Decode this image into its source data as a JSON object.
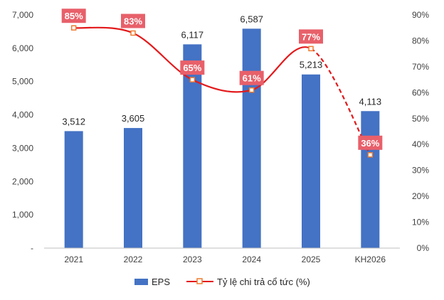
{
  "chart_data": {
    "type": "bar",
    "categories": [
      "2021",
      "2022",
      "2023",
      "2024",
      "2025",
      "KH2026"
    ],
    "series": [
      {
        "name": "EPS",
        "type": "bar",
        "axis": "left",
        "values": [
          3512,
          3605,
          6117,
          6587,
          5213,
          4113
        ],
        "labels": [
          "3,512",
          "3,605",
          "6,117",
          "6,587",
          "5,213",
          "4,113"
        ]
      },
      {
        "name": "Tỷ lệ chi trả cổ tức (%)",
        "type": "line",
        "axis": "right",
        "values": [
          85,
          83,
          65,
          61,
          77,
          36
        ],
        "labels": [
          "85%",
          "83%",
          "65%",
          "61%",
          "77%",
          "36%"
        ],
        "dashed_from_index": 4
      }
    ],
    "y_left": {
      "ylim": [
        0,
        7000
      ],
      "ticks": [
        "-",
        "1,000",
        "2,000",
        "3,000",
        "4,000",
        "5,000",
        "6,000",
        "7,000"
      ]
    },
    "y_right": {
      "ylim": [
        0,
        90
      ],
      "ticks": [
        "0%",
        "10%",
        "20%",
        "30%",
        "40%",
        "50%",
        "60%",
        "70%",
        "80%",
        "90%"
      ]
    },
    "grid": false,
    "legend_position": "bottom",
    "colors": {
      "bar": "#4472C4",
      "line": "#E31A1C",
      "label_bg": "#E8606A",
      "text": "#404040"
    }
  }
}
